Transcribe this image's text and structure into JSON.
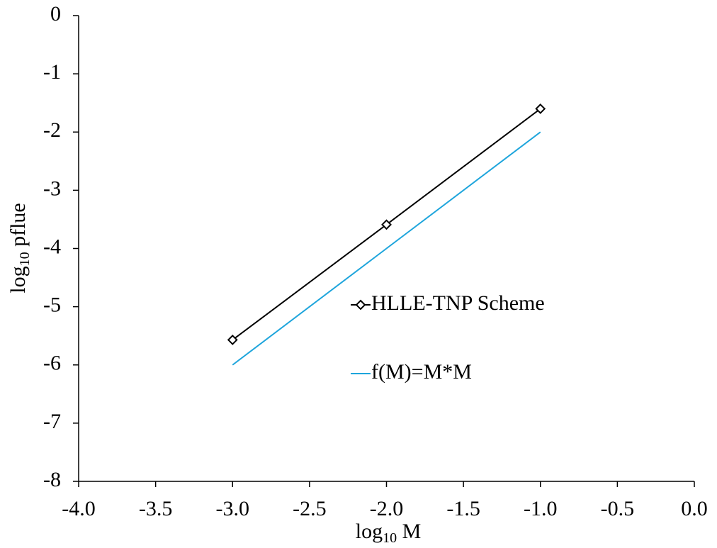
{
  "chart_data": {
    "type": "line",
    "x_label": [
      "log",
      "10",
      " M"
    ],
    "y_label": [
      "log",
      "10",
      " pflue"
    ],
    "x": [
      -3,
      -2,
      -1
    ],
    "series": [
      {
        "name": "HLLE-TNP Scheme",
        "color": "#000000",
        "marker": "diamond",
        "values": [
          -5.57,
          -3.59,
          -1.6
        ]
      },
      {
        "name": "f(M)=M*M",
        "color": "#1ea5dc",
        "values": [
          -6,
          -4,
          -2
        ]
      }
    ],
    "xlim": [
      -4,
      0
    ],
    "xticks": [
      {
        "value": -4,
        "label": "-4.0"
      },
      {
        "value": -3.5,
        "label": "-3.5"
      },
      {
        "value": -3,
        "label": "-3.0"
      },
      {
        "value": -2.5,
        "label": "-2.5"
      },
      {
        "value": -2,
        "label": "-2.0"
      },
      {
        "value": -1.5,
        "label": "-1.5"
      },
      {
        "value": -1,
        "label": "-1.0"
      },
      {
        "value": -0.5,
        "label": "-0.5"
      },
      {
        "value": 0,
        "label": "0.0"
      }
    ],
    "ylim": [
      -8,
      0
    ],
    "yticks": [
      0,
      -1,
      -2,
      -3,
      -4,
      -5,
      -6,
      -7,
      -8
    ],
    "grid": false,
    "legend": "center"
  }
}
